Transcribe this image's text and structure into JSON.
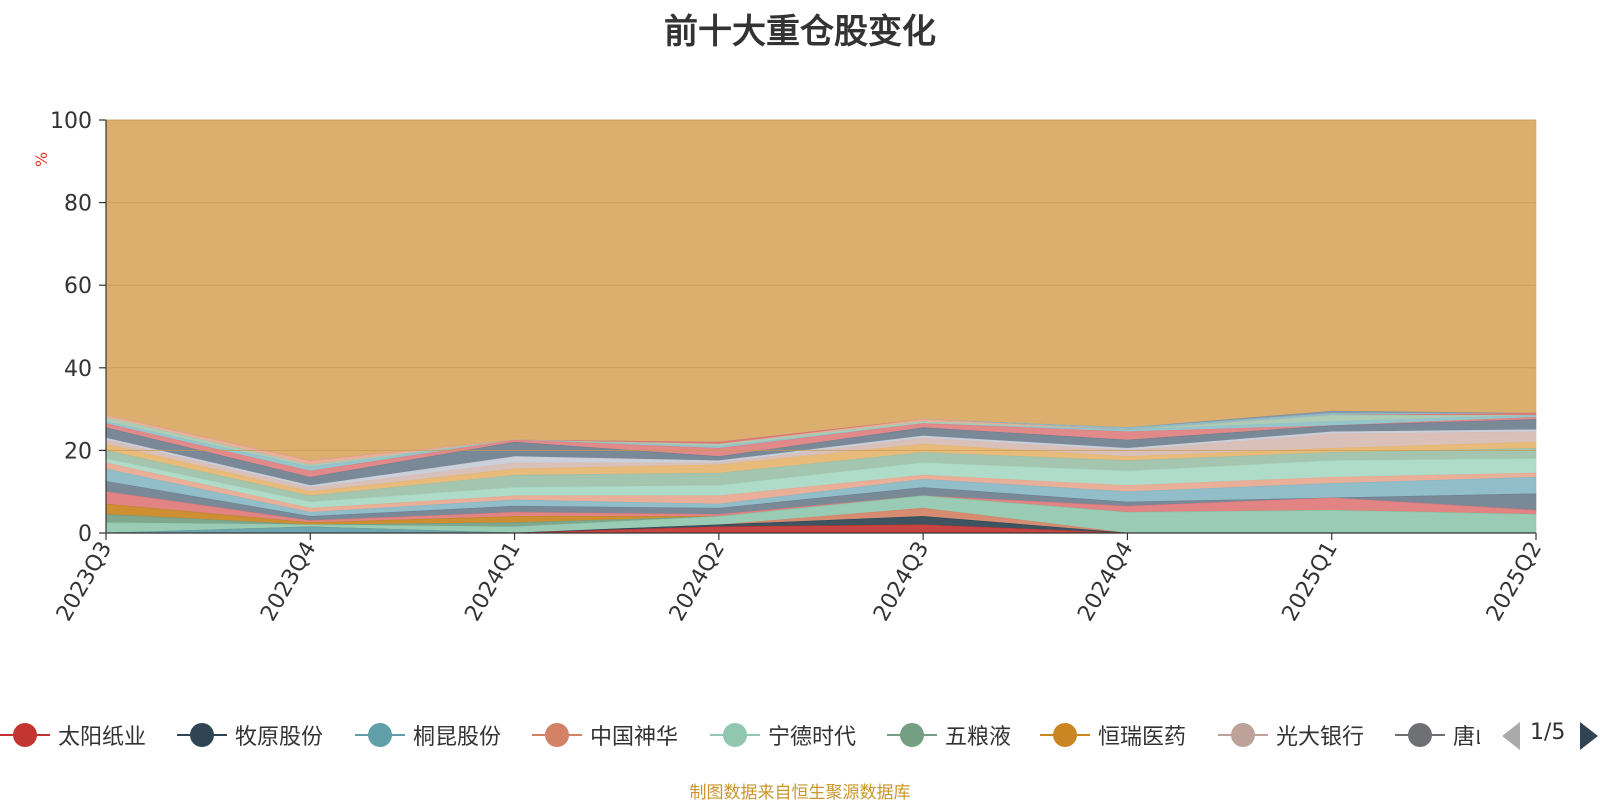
{
  "title": "前十大重仓股变化",
  "y_unit": "%",
  "source_note": "制图数据来自恒生聚源数据库",
  "legend": {
    "page": "1/5"
  },
  "colors": {
    "other": "#d9a862",
    "grid": "#c89a52",
    "axis": "#333333"
  },
  "chart_data": {
    "type": "area",
    "stacked": true,
    "title": "前十大重仓股变化",
    "ylabel": "%",
    "ylim": [
      0,
      100
    ],
    "yticks": [
      0,
      20,
      40,
      60,
      80,
      100
    ],
    "categories": [
      "2023Q3",
      "2023Q4",
      "2024Q1",
      "2024Q2",
      "2024Q3",
      "2024Q4",
      "2025Q1",
      "2025Q2"
    ],
    "series": [
      {
        "name": "太阳纸业",
        "color": "#c23531",
        "values": [
          0,
          0,
          0,
          1.5,
          2.0,
          0,
          0,
          0
        ]
      },
      {
        "name": "牧原股份",
        "color": "#2f4554",
        "values": [
          0,
          0,
          0,
          0.5,
          2.0,
          0,
          0,
          0
        ]
      },
      {
        "name": "桐昆股份",
        "color": "#61a0a8",
        "values": [
          0,
          1.5,
          0,
          0,
          0,
          0,
          0,
          0
        ]
      },
      {
        "name": "中国神华",
        "color": "#d48265",
        "values": [
          0,
          0,
          0,
          0,
          2.0,
          0,
          0,
          0
        ]
      },
      {
        "name": "宁德时代",
        "color": "#91c7ae",
        "values": [
          2.5,
          0.5,
          1.5,
          2.0,
          3.0,
          5.0,
          5.5,
          4.5
        ]
      },
      {
        "name": "五粮液",
        "color": "#749f83",
        "values": [
          2.0,
          0,
          1.0,
          0,
          0,
          0,
          0,
          0
        ]
      },
      {
        "name": "恒瑞医药",
        "color": "#ca8622",
        "values": [
          2.5,
          0.5,
          1.5,
          0,
          0,
          0,
          0,
          0
        ]
      },
      {
        "name": "光大银行",
        "color": "#bda29a",
        "values": [
          0,
          0,
          0,
          0,
          0,
          0,
          0,
          0
        ]
      },
      {
        "name": "唐山港",
        "color": "#6e7074",
        "values": [
          0,
          0,
          0,
          0,
          0,
          0,
          0,
          0
        ]
      },
      {
        "values": [
          3.0,
          0.5,
          1.0,
          0.5,
          0,
          1.5,
          3.0,
          1.0
        ],
        "color": "#e07a7a"
      },
      {
        "values": [
          2.5,
          1.0,
          1.5,
          1.5,
          2.0,
          1.0,
          0,
          4.0
        ],
        "color": "#6e7f8f"
      },
      {
        "values": [
          3.0,
          1.0,
          1.5,
          1.0,
          2.0,
          2.5,
          3.5,
          4.0
        ],
        "color": "#88b8c4"
      },
      {
        "values": [
          1.5,
          1.0,
          1.0,
          2.0,
          1.0,
          1.5,
          1.5,
          1.0
        ],
        "color": "#e8a890"
      },
      {
        "values": [
          1.0,
          1.5,
          2.0,
          2.5,
          3.0,
          3.5,
          4.0,
          3.5
        ],
        "color": "#a8d8c4"
      },
      {
        "values": [
          2.0,
          1.5,
          3.0,
          3.0,
          2.5,
          2.5,
          2.0,
          2.5
        ],
        "color": "#9cc0a8"
      },
      {
        "values": [
          1.5,
          1.0,
          1.5,
          2.0,
          2.0,
          1.0,
          1.0,
          1.5
        ],
        "color": "#e6b570"
      },
      {
        "values": [
          1.0,
          1.0,
          1.5,
          0.5,
          1.5,
          1.5,
          3.5,
          2.5
        ],
        "color": "#d6bcb4"
      },
      {
        "values": [
          0.5,
          0.5,
          1.5,
          0.5,
          0.5,
          0.5,
          0.5,
          0.5
        ],
        "color": "#c8ccd8"
      },
      {
        "values": [
          2.5,
          2.0,
          3.5,
          1.0,
          2.0,
          2.0,
          1.5,
          2.5
        ],
        "color": "#6e7f8f"
      },
      {
        "values": [
          1.0,
          1.5,
          0.5,
          2.0,
          1.0,
          2.0,
          0,
          0.5
        ],
        "color": "#e08080"
      },
      {
        "values": [
          0.5,
          1.0,
          0,
          0.5,
          0,
          0.5,
          1.0,
          0.5
        ],
        "color": "#8ec0c8"
      },
      {
        "values": [
          1.0,
          0.5,
          0,
          0.5,
          0.5,
          0,
          1.5,
          0
        ],
        "color": "#a8c8b0"
      },
      {
        "values": [
          0.5,
          1.0,
          0,
          0,
          0.5,
          0,
          0,
          0
        ],
        "color": "#e8a890"
      },
      {
        "values": [
          0,
          0,
          0,
          0.5,
          0,
          0,
          0,
          0.5
        ],
        "color": "#e07070"
      },
      {
        "values": [
          0,
          0,
          0,
          0,
          0,
          0.5,
          0.5,
          0
        ],
        "color": "#88b8c4"
      },
      {
        "values": [
          0,
          0,
          0,
          0,
          0,
          0,
          0.5,
          0
        ],
        "color": "#8090a0"
      }
    ],
    "other": {
      "color": "#d9a862"
    }
  }
}
